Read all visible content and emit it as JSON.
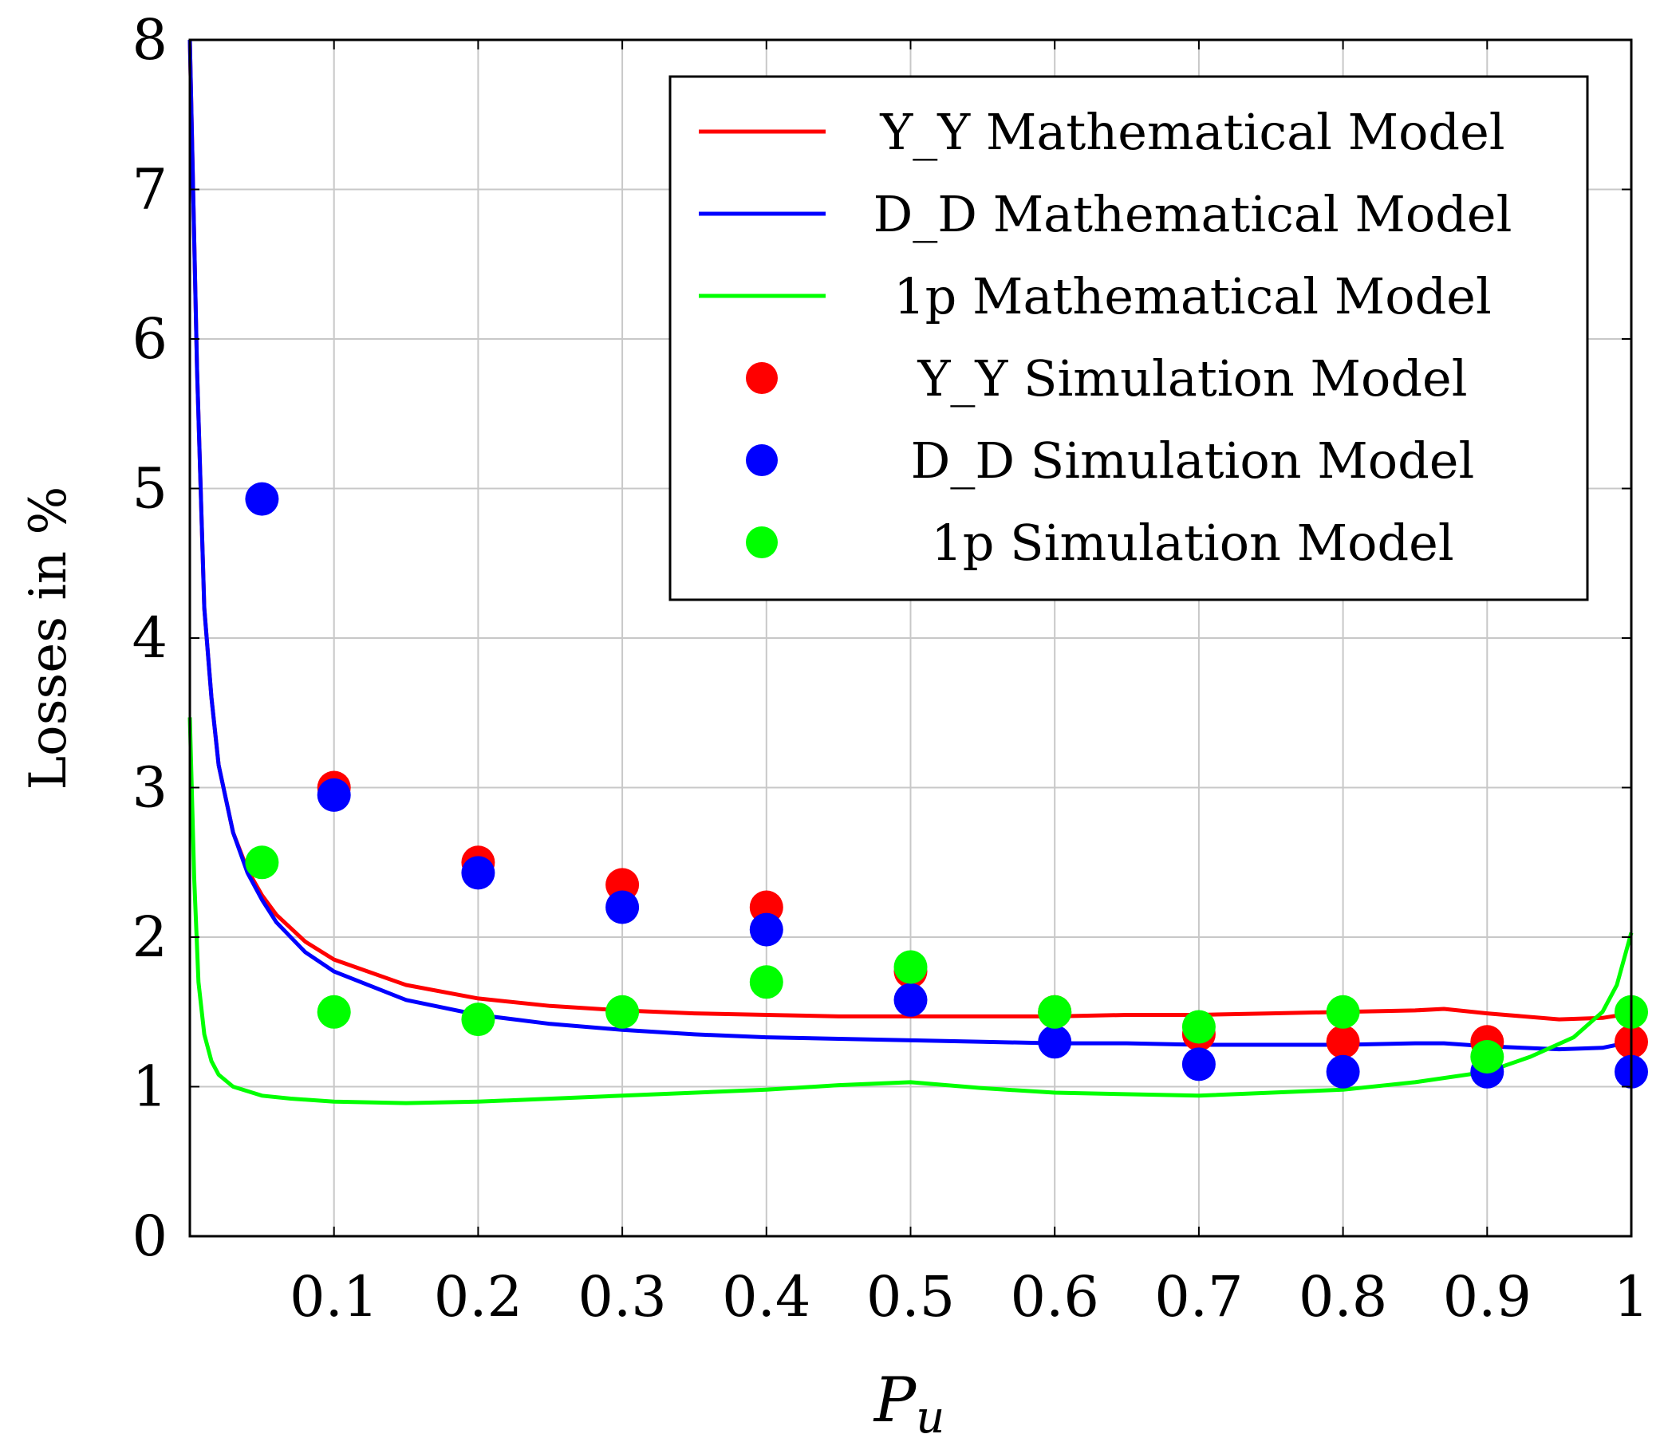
{
  "chart_data": {
    "type": "line",
    "title": "",
    "xlabel": "P",
    "xlabel_subscript": "u",
    "ylabel": "Losses in %",
    "xlim": [
      0,
      1
    ],
    "ylim": [
      0,
      8
    ],
    "x_ticks": [
      0.1,
      0.2,
      0.3,
      0.4,
      0.5,
      0.6,
      0.7,
      0.8,
      0.9,
      1
    ],
    "x_tick_labels": [
      "0.1",
      "0.2",
      "0.3",
      "0.4",
      "0.5",
      "0.6",
      "0.7",
      "0.8",
      "0.9",
      "1"
    ],
    "y_ticks": [
      0,
      1,
      2,
      3,
      4,
      5,
      6,
      7,
      8
    ],
    "y_tick_labels": [
      "0",
      "1",
      "2",
      "3",
      "4",
      "5",
      "6",
      "7",
      "8"
    ],
    "grid": true,
    "legend_position": "top-right",
    "series": [
      {
        "name": "Y_Y Mathematical Model",
        "kind": "line",
        "color": "#ff0000",
        "x": [
          0.0,
          0.005,
          0.01,
          0.015,
          0.02,
          0.03,
          0.04,
          0.05,
          0.06,
          0.08,
          0.1,
          0.15,
          0.2,
          0.25,
          0.3,
          0.35,
          0.4,
          0.45,
          0.5,
          0.55,
          0.6,
          0.65,
          0.7,
          0.75,
          0.8,
          0.85,
          0.87,
          0.9,
          0.95,
          0.98,
          1.0
        ],
        "y": [
          8.0,
          5.8,
          4.2,
          3.6,
          3.15,
          2.7,
          2.45,
          2.28,
          2.15,
          1.97,
          1.85,
          1.68,
          1.59,
          1.54,
          1.51,
          1.49,
          1.48,
          1.47,
          1.47,
          1.47,
          1.47,
          1.48,
          1.48,
          1.49,
          1.5,
          1.51,
          1.52,
          1.49,
          1.45,
          1.46,
          1.49
        ]
      },
      {
        "name": "D_D Mathematical Model",
        "kind": "line",
        "color": "#0000ff",
        "x": [
          0.0,
          0.005,
          0.01,
          0.015,
          0.02,
          0.03,
          0.04,
          0.05,
          0.06,
          0.08,
          0.1,
          0.15,
          0.2,
          0.25,
          0.3,
          0.35,
          0.4,
          0.45,
          0.5,
          0.55,
          0.6,
          0.65,
          0.7,
          0.75,
          0.8,
          0.85,
          0.87,
          0.9,
          0.95,
          0.98,
          1.0
        ],
        "y": [
          8.0,
          5.8,
          4.2,
          3.6,
          3.15,
          2.7,
          2.43,
          2.25,
          2.1,
          1.9,
          1.77,
          1.58,
          1.48,
          1.42,
          1.38,
          1.35,
          1.33,
          1.32,
          1.31,
          1.3,
          1.29,
          1.29,
          1.28,
          1.28,
          1.28,
          1.29,
          1.29,
          1.27,
          1.25,
          1.26,
          1.3
        ]
      },
      {
        "name": "1p Mathematical Model",
        "kind": "line",
        "color": "#00ff00",
        "x": [
          0.0,
          0.003,
          0.006,
          0.01,
          0.015,
          0.02,
          0.03,
          0.04,
          0.05,
          0.07,
          0.1,
          0.15,
          0.2,
          0.3,
          0.4,
          0.45,
          0.5,
          0.55,
          0.6,
          0.7,
          0.8,
          0.85,
          0.9,
          0.93,
          0.96,
          0.98,
          0.99,
          1.0
        ],
        "y": [
          3.47,
          2.4,
          1.7,
          1.35,
          1.17,
          1.08,
          1.0,
          0.97,
          0.94,
          0.92,
          0.9,
          0.89,
          0.9,
          0.94,
          0.98,
          1.01,
          1.03,
          0.99,
          0.96,
          0.94,
          0.98,
          1.03,
          1.1,
          1.2,
          1.33,
          1.5,
          1.68,
          2.03
        ]
      },
      {
        "name": "Y_Y Simulation Model",
        "kind": "scatter",
        "color": "#ff0000",
        "x": [
          0.1,
          0.2,
          0.3,
          0.4,
          0.5,
          0.6,
          0.7,
          0.8,
          0.9,
          1.0
        ],
        "y": [
          3.0,
          2.5,
          2.35,
          2.2,
          1.77,
          1.5,
          1.35,
          1.3,
          1.3,
          1.3
        ]
      },
      {
        "name": "D_D Simulation Model",
        "kind": "scatter",
        "color": "#0000ff",
        "x": [
          0.05,
          0.1,
          0.2,
          0.3,
          0.4,
          0.5,
          0.6,
          0.7,
          0.8,
          0.9,
          1.0
        ],
        "y": [
          4.93,
          2.95,
          2.43,
          2.2,
          2.05,
          1.58,
          1.3,
          1.15,
          1.1,
          1.1,
          1.1
        ]
      },
      {
        "name": "1p Simulation Model",
        "kind": "scatter",
        "color": "#00ff00",
        "x": [
          0.05,
          0.1,
          0.2,
          0.3,
          0.4,
          0.5,
          0.6,
          0.7,
          0.8,
          0.9,
          1.0
        ],
        "y": [
          2.5,
          1.5,
          1.45,
          1.5,
          1.7,
          1.8,
          1.5,
          1.4,
          1.5,
          1.2,
          1.5
        ]
      }
    ]
  }
}
